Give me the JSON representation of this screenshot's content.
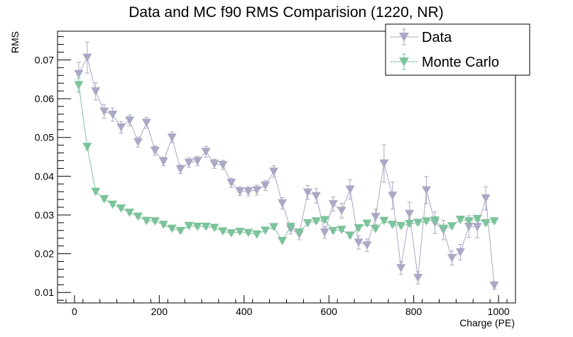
{
  "chart_data": {
    "type": "scatter",
    "title": "Data and MC f90 RMS Comparision (1220, NR)",
    "xlabel": "Charge (PE)",
    "ylabel": "RMS",
    "xlim": [
      -40,
      1040
    ],
    "ylim": [
      0.0073,
      0.0774
    ],
    "x_ticks": [
      0,
      200,
      400,
      600,
      800,
      1000
    ],
    "y_ticks": [
      0.01,
      0.02,
      0.03,
      0.04,
      0.05,
      0.06,
      0.07
    ],
    "y_tick_labels": [
      "0.01",
      "0.02",
      "0.03",
      "0.04",
      "0.05",
      "0.06",
      "0.07"
    ],
    "grid": false,
    "legend_position": "top-right",
    "series": [
      {
        "name": "Data",
        "color": "#a9a8c5",
        "marker": "triangle-down",
        "x": [
          10,
          30,
          50,
          70,
          90,
          110,
          130,
          150,
          170,
          190,
          210,
          230,
          250,
          270,
          290,
          310,
          330,
          350,
          370,
          390,
          410,
          430,
          450,
          470,
          490,
          510,
          530,
          550,
          570,
          590,
          610,
          630,
          650,
          670,
          690,
          710,
          730,
          750,
          770,
          790,
          810,
          830,
          850,
          870,
          890,
          910,
          930,
          950,
          970,
          990
        ],
        "y": [
          0.0664,
          0.0706,
          0.0619,
          0.0567,
          0.0559,
          0.0526,
          0.0544,
          0.0488,
          0.0538,
          0.0466,
          0.0438,
          0.05,
          0.0418,
          0.0435,
          0.0439,
          0.0463,
          0.0432,
          0.0429,
          0.0383,
          0.0361,
          0.0361,
          0.0364,
          0.0376,
          0.0412,
          0.033,
          0.0264,
          0.025,
          0.0358,
          0.0349,
          0.0255,
          0.0328,
          0.0311,
          0.0366,
          0.0229,
          0.0222,
          0.0295,
          0.0433,
          0.035,
          0.0163,
          0.0303,
          0.0138,
          0.0364,
          0.028,
          0.0261,
          0.0189,
          0.0204,
          0.027,
          0.0269,
          0.0343,
          0.0118
        ],
        "err": [
          0.003,
          0.004,
          0.0022,
          0.0018,
          0.0017,
          0.0015,
          0.0014,
          0.0013,
          0.0014,
          0.0012,
          0.0011,
          0.0014,
          0.0011,
          0.0012,
          0.0012,
          0.0014,
          0.0012,
          0.0012,
          0.0012,
          0.0011,
          0.0012,
          0.0013,
          0.0013,
          0.0015,
          0.0015,
          0.0013,
          0.0014,
          0.0018,
          0.0019,
          0.0015,
          0.0018,
          0.0019,
          0.0025,
          0.0017,
          0.0016,
          0.002,
          0.0048,
          0.0035,
          0.0017,
          0.003,
          0.0016,
          0.0035,
          0.0028,
          0.0025,
          0.0018,
          0.002,
          0.0028,
          0.0028,
          0.003,
          0.001
        ]
      },
      {
        "name": "Monte Carlo",
        "color": "#7cc39b",
        "marker": "triangle-down",
        "x": [
          10,
          30,
          50,
          70,
          90,
          110,
          130,
          150,
          170,
          190,
          210,
          230,
          250,
          270,
          290,
          310,
          330,
          350,
          370,
          390,
          410,
          430,
          450,
          470,
          490,
          510,
          530,
          550,
          570,
          590,
          610,
          630,
          650,
          670,
          690,
          710,
          730,
          750,
          770,
          790,
          810,
          830,
          850,
          870,
          890,
          910,
          930,
          950,
          970,
          990
        ],
        "y": [
          0.0635,
          0.0476,
          0.036,
          0.0341,
          0.0327,
          0.0317,
          0.0306,
          0.0296,
          0.0285,
          0.0284,
          0.0275,
          0.0265,
          0.0259,
          0.0272,
          0.027,
          0.027,
          0.0267,
          0.0258,
          0.0253,
          0.0257,
          0.0254,
          0.025,
          0.026,
          0.0269,
          0.0233,
          0.027,
          0.0255,
          0.0279,
          0.0284,
          0.0287,
          0.0259,
          0.0262,
          0.0247,
          0.0266,
          0.0278,
          0.0264,
          0.0285,
          0.0275,
          0.0272,
          0.0277,
          0.028,
          0.0284,
          0.0286,
          0.0265,
          0.0271,
          0.0288,
          0.0284,
          0.029,
          0.0279,
          0.0284
        ],
        "err": [
          0.0018,
          0.0008,
          0.0005,
          0.0004,
          0.0004,
          0.0004,
          0.0004,
          0.0004,
          0.0004,
          0.0004,
          0.0004,
          0.0004,
          0.0004,
          0.0004,
          0.0004,
          0.0004,
          0.0004,
          0.0004,
          0.0004,
          0.0004,
          0.0004,
          0.0004,
          0.0004,
          0.0004,
          0.0004,
          0.0004,
          0.0004,
          0.0005,
          0.0005,
          0.0005,
          0.0005,
          0.0005,
          0.0005,
          0.0005,
          0.0005,
          0.0005,
          0.0005,
          0.0005,
          0.0005,
          0.0005,
          0.0005,
          0.0005,
          0.0005,
          0.0005,
          0.0005,
          0.0005,
          0.0005,
          0.0005,
          0.0005,
          0.0005
        ]
      }
    ]
  }
}
